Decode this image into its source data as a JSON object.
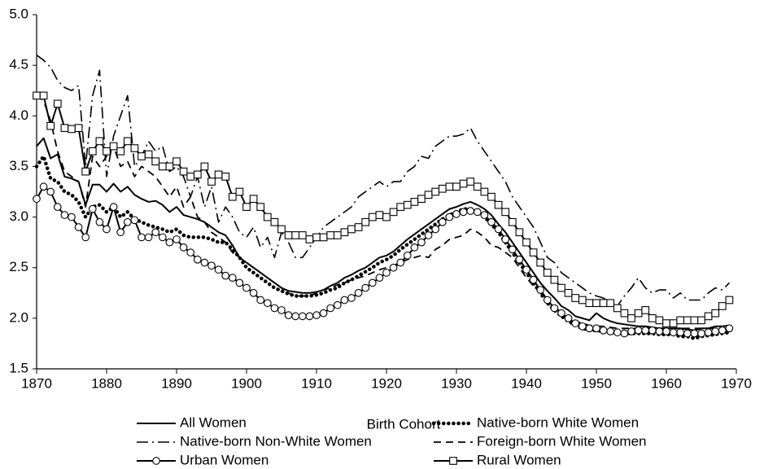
{
  "chart_data": {
    "type": "line",
    "x_label": "Birth Cohort",
    "x": [
      1870,
      1871,
      1872,
      1873,
      1874,
      1875,
      1876,
      1877,
      1878,
      1879,
      1880,
      1881,
      1882,
      1883,
      1884,
      1885,
      1886,
      1887,
      1888,
      1889,
      1890,
      1891,
      1892,
      1893,
      1894,
      1895,
      1896,
      1897,
      1898,
      1899,
      1900,
      1901,
      1902,
      1903,
      1904,
      1905,
      1906,
      1907,
      1908,
      1909,
      1910,
      1911,
      1912,
      1913,
      1914,
      1915,
      1916,
      1917,
      1918,
      1919,
      1920,
      1921,
      1922,
      1923,
      1924,
      1925,
      1926,
      1927,
      1928,
      1929,
      1930,
      1931,
      1932,
      1933,
      1934,
      1935,
      1936,
      1937,
      1938,
      1939,
      1940,
      1941,
      1942,
      1943,
      1944,
      1945,
      1946,
      1947,
      1948,
      1949,
      1950,
      1951,
      1952,
      1953,
      1954,
      1955,
      1956,
      1957,
      1958,
      1959,
      1960,
      1961,
      1962,
      1963,
      1964,
      1965,
      1966,
      1967,
      1968,
      1969
    ],
    "xlim": [
      1870,
      1970
    ],
    "xticks": [
      1870,
      1880,
      1890,
      1900,
      1910,
      1920,
      1930,
      1940,
      1950,
      1960,
      1970
    ],
    "ylim": [
      1.5,
      5.0
    ],
    "yticks": [
      1.5,
      {
        "value": 2,
        "label": "2.0"
      },
      2.5,
      {
        "value": 3,
        "label": "3.0"
      },
      3.5,
      {
        "value": 4,
        "label": "4.0"
      },
      4.5,
      {
        "value": 5,
        "label": "5.0"
      }
    ],
    "grid": false,
    "series": [
      {
        "name": "All Women",
        "color": "#000000",
        "dash": "solid",
        "marker": "none",
        "values": [
          3.7,
          3.78,
          3.58,
          3.62,
          3.4,
          3.38,
          3.35,
          3.12,
          3.32,
          3.32,
          3.25,
          3.33,
          3.25,
          3.3,
          3.22,
          3.18,
          3.15,
          3.16,
          3.12,
          3.05,
          3.1,
          3.02,
          3.0,
          2.98,
          2.95,
          2.9,
          2.85,
          2.82,
          2.72,
          2.6,
          2.55,
          2.5,
          2.45,
          2.4,
          2.35,
          2.3,
          2.27,
          2.26,
          2.25,
          2.25,
          2.26,
          2.28,
          2.32,
          2.35,
          2.4,
          2.43,
          2.47,
          2.5,
          2.55,
          2.6,
          2.62,
          2.66,
          2.72,
          2.78,
          2.83,
          2.88,
          2.93,
          2.98,
          3.03,
          3.08,
          3.1,
          3.13,
          3.15,
          3.12,
          3.08,
          3.02,
          2.93,
          2.85,
          2.75,
          2.65,
          2.55,
          2.45,
          2.35,
          2.27,
          2.2,
          2.12,
          2.08,
          2.02,
          2.0,
          1.98,
          2.05,
          2.0,
          1.97,
          1.95,
          1.94,
          1.93,
          1.92,
          1.92,
          1.91,
          1.9,
          1.9,
          1.9,
          1.9,
          1.89,
          1.88,
          1.9,
          1.9,
          1.92,
          1.92,
          1.93
        ]
      },
      {
        "name": "Native-born White Women",
        "color": "#000000",
        "dash": "dotted",
        "marker": "none",
        "values": [
          3.5,
          3.6,
          3.38,
          3.35,
          3.25,
          3.22,
          3.15,
          3.0,
          3.1,
          3.12,
          3.05,
          3.1,
          3.0,
          3.05,
          2.98,
          2.95,
          2.92,
          2.9,
          2.88,
          2.85,
          2.88,
          2.82,
          2.8,
          2.8,
          2.8,
          2.78,
          2.75,
          2.75,
          2.68,
          2.6,
          2.5,
          2.45,
          2.4,
          2.35,
          2.3,
          2.27,
          2.24,
          2.22,
          2.22,
          2.22,
          2.23,
          2.25,
          2.28,
          2.3,
          2.35,
          2.38,
          2.42,
          2.46,
          2.5,
          2.55,
          2.58,
          2.62,
          2.68,
          2.73,
          2.78,
          2.83,
          2.88,
          2.93,
          2.98,
          3.02,
          3.05,
          3.08,
          3.08,
          3.05,
          3.0,
          2.93,
          2.85,
          2.75,
          2.65,
          2.55,
          2.45,
          2.35,
          2.25,
          2.15,
          2.08,
          2.02,
          1.97,
          1.93,
          1.9,
          1.88,
          1.88,
          1.87,
          1.86,
          1.86,
          1.85,
          1.85,
          1.85,
          1.85,
          1.85,
          1.84,
          1.84,
          1.84,
          1.82,
          1.82,
          1.8,
          1.82,
          1.83,
          1.84,
          1.85,
          1.86
        ]
      },
      {
        "name": "Native-born Non-White Women",
        "color": "#000000",
        "dash": "dashdot",
        "marker": "none",
        "values": [
          4.6,
          4.55,
          4.48,
          4.35,
          4.28,
          4.25,
          4.3,
          3.5,
          4.2,
          4.45,
          3.4,
          3.8,
          4.0,
          4.2,
          3.5,
          3.6,
          3.75,
          3.65,
          3.7,
          3.45,
          3.5,
          3.4,
          3.2,
          3.4,
          3.1,
          3.3,
          2.95,
          3.1,
          3.0,
          2.85,
          2.8,
          2.9,
          2.7,
          2.8,
          2.6,
          2.85,
          2.75,
          2.6,
          2.6,
          2.7,
          2.8,
          2.9,
          2.95,
          3.0,
          3.05,
          3.1,
          3.2,
          3.25,
          3.3,
          3.35,
          3.3,
          3.35,
          3.35,
          3.45,
          3.5,
          3.6,
          3.58,
          3.7,
          3.75,
          3.8,
          3.8,
          3.82,
          3.88,
          3.75,
          3.65,
          3.55,
          3.45,
          3.35,
          3.2,
          3.1,
          3.0,
          2.9,
          2.75,
          2.6,
          2.55,
          2.45,
          2.4,
          2.35,
          2.3,
          2.25,
          2.22,
          2.2,
          2.15,
          2.12,
          2.22,
          2.3,
          2.4,
          2.3,
          2.25,
          2.28,
          2.28,
          2.2,
          2.25,
          2.18,
          2.18,
          2.18,
          2.25,
          2.3,
          2.28,
          2.35
        ]
      },
      {
        "name": "Foreign-born White Women",
        "color": "#000000",
        "dash": "dashed",
        "marker": "none",
        "values": [
          4.2,
          4.15,
          3.95,
          3.65,
          3.45,
          3.4,
          3.35,
          3.1,
          3.6,
          3.5,
          3.6,
          3.7,
          3.5,
          3.55,
          3.4,
          3.5,
          3.45,
          3.4,
          3.3,
          3.2,
          3.3,
          3.1,
          3.2,
          3.0,
          2.95,
          2.85,
          2.8,
          2.75,
          2.65,
          2.6,
          2.55,
          2.5,
          2.45,
          2.4,
          2.35,
          2.3,
          2.25,
          2.22,
          2.22,
          2.22,
          2.25,
          2.28,
          2.3,
          2.33,
          2.35,
          2.38,
          2.4,
          2.42,
          2.45,
          2.48,
          2.5,
          2.52,
          2.55,
          2.58,
          2.6,
          2.62,
          2.6,
          2.68,
          2.72,
          2.78,
          2.8,
          2.82,
          2.88,
          2.85,
          2.8,
          2.72,
          2.7,
          2.65,
          2.6,
          2.5,
          2.4,
          2.32,
          2.25,
          2.18,
          2.12,
          2.05,
          2.0,
          1.97,
          1.95,
          1.93,
          1.92,
          1.92,
          1.91,
          1.9,
          1.9,
          1.9,
          1.9,
          1.9,
          1.9,
          1.9,
          1.9,
          1.9,
          1.9,
          1.9,
          1.9,
          1.9,
          1.9,
          1.9,
          1.9,
          1.9
        ]
      },
      {
        "name": "Urban Women",
        "color": "#000000",
        "dash": "solid",
        "marker": "circle",
        "values": [
          3.18,
          3.3,
          3.25,
          3.1,
          3.02,
          3.0,
          2.9,
          2.8,
          3.08,
          2.95,
          2.88,
          3.1,
          2.85,
          2.95,
          2.97,
          2.8,
          2.8,
          2.85,
          2.8,
          2.75,
          2.78,
          2.7,
          2.65,
          2.58,
          2.55,
          2.52,
          2.48,
          2.42,
          2.4,
          2.35,
          2.3,
          2.25,
          2.18,
          2.15,
          2.1,
          2.08,
          2.03,
          2.02,
          2.02,
          2.02,
          2.03,
          2.05,
          2.1,
          2.13,
          2.18,
          2.2,
          2.25,
          2.3,
          2.35,
          2.4,
          2.45,
          2.5,
          2.55,
          2.62,
          2.7,
          2.75,
          2.82,
          2.88,
          2.95,
          3.0,
          3.03,
          3.05,
          3.06,
          3.05,
          3.02,
          2.95,
          2.88,
          2.78,
          2.68,
          2.58,
          2.48,
          2.38,
          2.28,
          2.18,
          2.1,
          2.05,
          2.0,
          1.95,
          1.92,
          1.9,
          1.9,
          1.88,
          1.87,
          1.86,
          1.85,
          1.87,
          1.88,
          1.88,
          1.88,
          1.87,
          1.87,
          1.86,
          1.86,
          1.85,
          1.85,
          1.85,
          1.86,
          1.87,
          1.88,
          1.9
        ]
      },
      {
        "name": "Rural Women",
        "color": "#000000",
        "dash": "solid",
        "marker": "square",
        "values": [
          4.2,
          4.2,
          3.9,
          4.12,
          3.88,
          3.87,
          3.88,
          3.45,
          3.65,
          3.75,
          3.65,
          3.7,
          3.65,
          3.75,
          3.68,
          3.6,
          3.62,
          3.55,
          3.5,
          3.5,
          3.55,
          3.45,
          3.4,
          3.42,
          3.5,
          3.35,
          3.42,
          3.4,
          3.2,
          3.25,
          3.1,
          3.18,
          3.1,
          3.0,
          2.95,
          2.88,
          2.82,
          2.82,
          2.82,
          2.78,
          2.8,
          2.8,
          2.82,
          2.82,
          2.85,
          2.88,
          2.9,
          2.95,
          3.0,
          3.02,
          3.0,
          3.05,
          3.1,
          3.12,
          3.15,
          3.18,
          3.22,
          3.25,
          3.28,
          3.3,
          3.3,
          3.33,
          3.35,
          3.3,
          3.25,
          3.2,
          3.12,
          3.05,
          2.95,
          2.85,
          2.75,
          2.65,
          2.55,
          2.45,
          2.38,
          2.3,
          2.25,
          2.2,
          2.18,
          2.15,
          2.15,
          2.15,
          2.15,
          2.1,
          2.05,
          2.0,
          2.05,
          2.08,
          2.0,
          1.98,
          1.95,
          1.95,
          1.98,
          1.98,
          1.98,
          1.98,
          2.02,
          2.05,
          2.12,
          2.18
        ]
      }
    ]
  }
}
